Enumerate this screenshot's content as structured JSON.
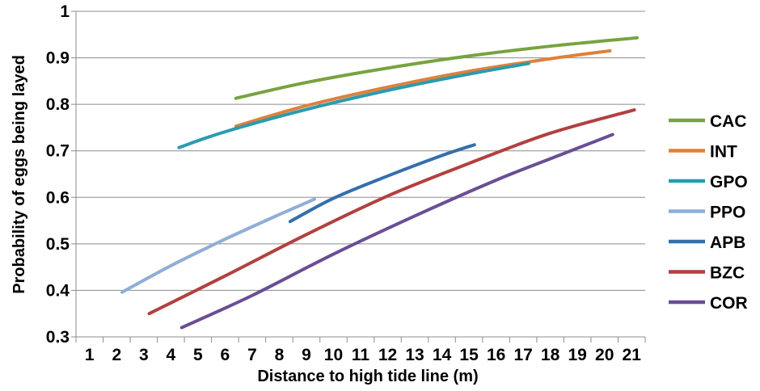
{
  "chart_data": {
    "type": "line",
    "title": "",
    "xlabel": "Distance to high tide line (m)",
    "ylabel": "Probability of eggs being layed",
    "xlim": [
      0.5,
      21.5
    ],
    "ylim": [
      0.3,
      1.0
    ],
    "x_ticks": [
      1,
      2,
      3,
      4,
      5,
      6,
      7,
      8,
      9,
      10,
      11,
      12,
      13,
      14,
      15,
      16,
      17,
      18,
      19,
      20,
      21
    ],
    "y_ticks": [
      0.3,
      0.4,
      0.5,
      0.6,
      0.7,
      0.8,
      0.9,
      1.0
    ],
    "y_tick_labels": [
      "0.3",
      "0.4",
      "0.5",
      "0.6",
      "0.7",
      "0.8",
      "0.9",
      "1"
    ],
    "grid": "horizontal",
    "legend_position": "right",
    "series": [
      {
        "name": "CAC",
        "color": "#77a340",
        "x": [
          6.4,
          9,
          12,
          15,
          18,
          21.2
        ],
        "y": [
          0.813,
          0.847,
          0.878,
          0.904,
          0.925,
          0.943
        ]
      },
      {
        "name": "INT",
        "color": "#e0803a",
        "x": [
          6.4,
          9,
          12,
          15,
          18,
          20.2
        ],
        "y": [
          0.753,
          0.797,
          0.837,
          0.871,
          0.898,
          0.915
        ]
      },
      {
        "name": "GPO",
        "color": "#2a9bb0",
        "x": [
          4.3,
          6,
          9,
          12,
          15,
          17.2
        ],
        "y": [
          0.707,
          0.741,
          0.789,
          0.83,
          0.865,
          0.888
        ]
      },
      {
        "name": "PPO",
        "color": "#8faed6",
        "x": [
          2.2,
          4,
          6,
          8,
          9.3
        ],
        "y": [
          0.396,
          0.453,
          0.51,
          0.563,
          0.596
        ]
      },
      {
        "name": "APB",
        "color": "#336fac",
        "x": [
          8.4,
          10,
          12,
          14,
          15.2
        ],
        "y": [
          0.548,
          0.598,
          0.646,
          0.69,
          0.713
        ]
      },
      {
        "name": "BZC",
        "color": "#b2403f",
        "x": [
          3.2,
          6,
          9,
          12,
          15,
          18,
          21.1
        ],
        "y": [
          0.35,
          0.431,
          0.52,
          0.603,
          0.673,
          0.738,
          0.788
        ]
      },
      {
        "name": "COR",
        "color": "#6a4e95",
        "x": [
          4.4,
          7,
          10,
          13,
          16,
          18,
          20.3
        ],
        "y": [
          0.32,
          0.389,
          0.478,
          0.56,
          0.637,
          0.683,
          0.735
        ]
      }
    ]
  }
}
